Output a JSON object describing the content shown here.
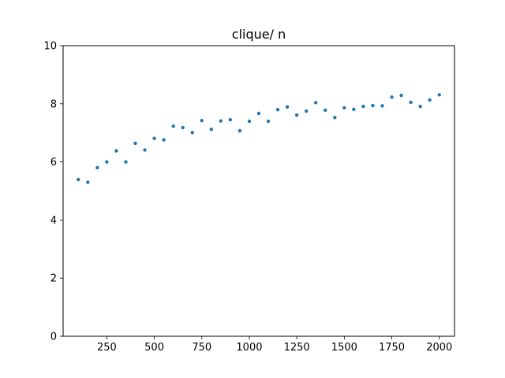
{
  "chart_data": {
    "type": "scatter",
    "title": "clique/ n",
    "xlabel": "",
    "ylabel": "",
    "xlim": [
      20,
      2080
    ],
    "ylim": [
      0,
      10
    ],
    "xticks": [
      250,
      500,
      750,
      1000,
      1250,
      1500,
      1750,
      2000
    ],
    "yticks": [
      0,
      2,
      4,
      6,
      8,
      10
    ],
    "grid": false,
    "color": "#1f77b4",
    "series": [
      {
        "x": [
          100,
          150,
          200,
          250,
          300,
          350,
          400,
          450,
          500,
          550,
          600,
          650,
          700,
          750,
          800,
          850,
          900,
          950,
          1000,
          1050,
          1100,
          1150,
          1200,
          1250,
          1300,
          1350,
          1400,
          1450,
          1500,
          1550,
          1600,
          1650,
          1700,
          1750,
          1800,
          1850,
          1900,
          1950,
          2000
        ],
        "y": [
          5.39,
          5.3,
          5.8,
          6.0,
          6.38,
          6.0,
          6.64,
          6.41,
          6.81,
          6.76,
          7.23,
          7.18,
          7.01,
          7.42,
          7.12,
          7.41,
          7.45,
          7.07,
          7.4,
          7.67,
          7.4,
          7.8,
          7.89,
          7.61,
          7.75,
          8.04,
          7.78,
          7.53,
          7.86,
          7.81,
          7.91,
          7.94,
          7.93,
          8.23,
          8.29,
          8.05,
          7.91,
          8.13,
          8.31
        ]
      }
    ]
  }
}
